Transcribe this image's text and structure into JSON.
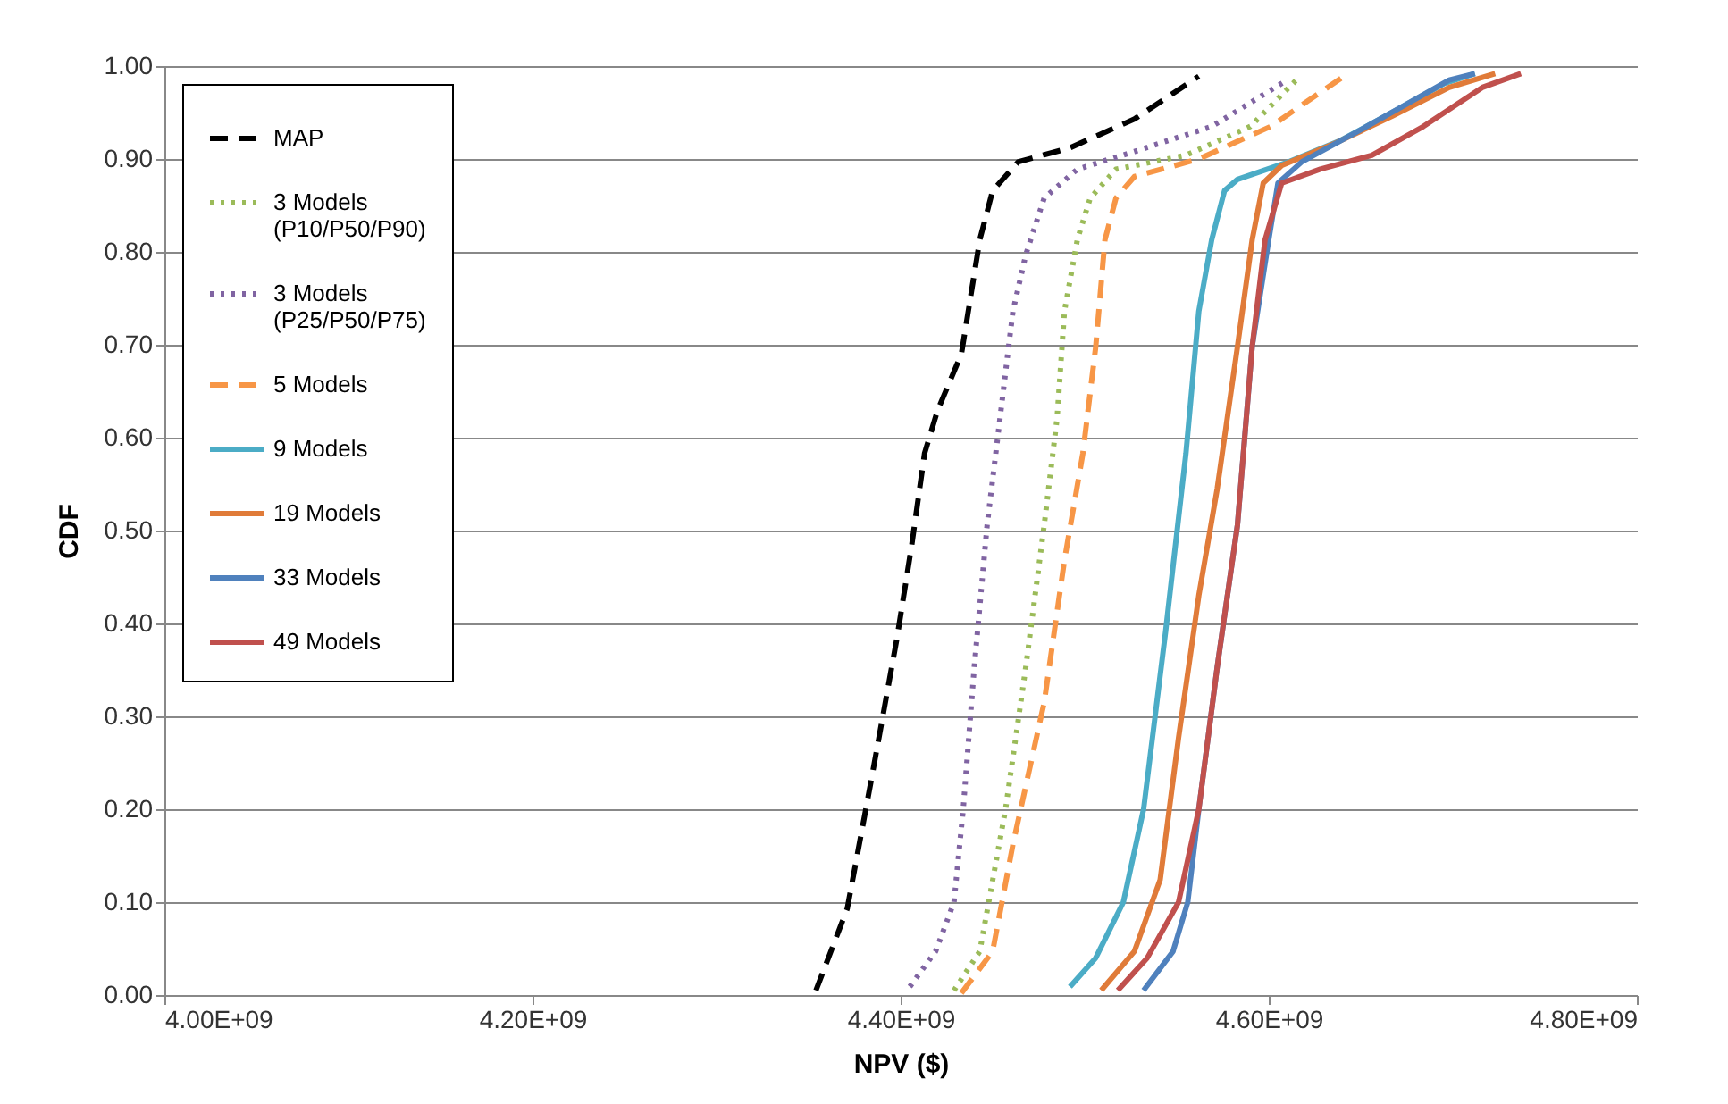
{
  "chart_data": {
    "type": "line",
    "xlabel": "NPV ($)",
    "ylabel": "CDF",
    "xlim": [
      4000000000.0,
      4800000000.0
    ],
    "ylim": [
      0,
      1
    ],
    "xticks": [
      {
        "value": 4000000000.0,
        "label": "4.00E+09"
      },
      {
        "value": 4200000000.0,
        "label": "4.20E+09"
      },
      {
        "value": 4400000000.0,
        "label": "4.40E+09"
      },
      {
        "value": 4600000000.0,
        "label": "4.60E+09"
      },
      {
        "value": 4800000000.0,
        "label": "4.80E+09"
      }
    ],
    "yticks": [
      {
        "value": 0,
        "label": "0.00"
      },
      {
        "value": 0.1,
        "label": "0.10"
      },
      {
        "value": 0.2,
        "label": "0.20"
      },
      {
        "value": 0.3,
        "label": "0.30"
      },
      {
        "value": 0.4,
        "label": "0.40"
      },
      {
        "value": 0.5,
        "label": "0.50"
      },
      {
        "value": 0.6,
        "label": "0.60"
      },
      {
        "value": 0.7,
        "label": "0.70"
      },
      {
        "value": 0.8,
        "label": "0.80"
      },
      {
        "value": 0.9,
        "label": "0.90"
      },
      {
        "value": 1.0,
        "label": "1.00"
      }
    ],
    "grid": "y",
    "legend": "top left",
    "series": [
      {
        "name": "MAP",
        "color": "#000000",
        "line_style": "dashed",
        "x": [
          4354000000.0,
          4371000000.0,
          4384000000.0,
          4398000000.0,
          4406000000.0,
          4413000000.0,
          4420000000.0,
          4433000000.0,
          4443000000.0,
          4450000000.0,
          4464000000.0,
          4492000000.0,
          4527000000.0,
          4562000000.0
        ],
        "values": [
          0.005,
          0.093,
          0.231,
          0.384,
          0.484,
          0.583,
          0.629,
          0.69,
          0.813,
          0.866,
          0.897,
          0.912,
          0.943,
          0.989
        ]
      },
      {
        "name": "3 Models (P10/P50/P90)",
        "color": "#9bbb59",
        "line_style": "dotted",
        "x": [
          4429000000.0,
          4443000000.0,
          4457000000.0,
          4468000000.0,
          4478000000.0,
          4485000000.0,
          4489000000.0,
          4496000000.0,
          4503000000.0,
          4517000000.0,
          4555000000.0,
          4590000000.0,
          4616000000.0
        ],
        "values": [
          0.005,
          0.047,
          0.2,
          0.353,
          0.506,
          0.621,
          0.736,
          0.813,
          0.858,
          0.889,
          0.904,
          0.935,
          0.987
        ]
      },
      {
        "name": "3 Models (P25/P50/P75)",
        "color": "#8064a2",
        "line_style": "dotted",
        "x": [
          4405000000.0,
          4419000000.0,
          4429000000.0,
          4434000000.0,
          4440000000.0,
          4447000000.0,
          4454000000.0,
          4461000000.0,
          4468000000.0,
          4478000000.0,
          4496000000.0,
          4527000000.0,
          4569000000.0,
          4610000000.0
        ],
        "values": [
          0.009,
          0.047,
          0.1,
          0.2,
          0.353,
          0.506,
          0.621,
          0.736,
          0.797,
          0.858,
          0.889,
          0.908,
          0.935,
          0.985
        ]
      },
      {
        "name": "5 Models",
        "color": "#f79646",
        "line_style": "dashed",
        "x": [
          4433000000.0,
          4450000000.0,
          4461000000.0,
          4478000000.0,
          4489000000.0,
          4499000000.0,
          4506000000.0,
          4511000000.0,
          4517000000.0,
          4527000000.0,
          4562000000.0,
          4601000000.0,
          4643000000.0
        ],
        "values": [
          0.002,
          0.047,
          0.162,
          0.315,
          0.468,
          0.583,
          0.698,
          0.813,
          0.858,
          0.881,
          0.9,
          0.935,
          0.992
        ]
      },
      {
        "name": "9 Models",
        "color": "#4bacc6",
        "line_style": "solid",
        "x": [
          4492000000.0,
          4506000000.0,
          4521000000.0,
          4532000000.0,
          4544000000.0,
          4555000000.0,
          4562000000.0,
          4569000000.0,
          4576000000.0,
          4583000000.0,
          4611000000.0,
          4639000000.0,
          4667000000.0,
          4695000000.0,
          4712000000.0
        ],
        "values": [
          0.009,
          0.04,
          0.1,
          0.2,
          0.392,
          0.583,
          0.736,
          0.813,
          0.866,
          0.878,
          0.897,
          0.92,
          0.95,
          0.981,
          0.992
        ]
      },
      {
        "name": "19 Models",
        "color": "#e07b39",
        "line_style": "solid",
        "x": [
          4509000000.0,
          4527000000.0,
          4541000000.0,
          4551000000.0,
          4562000000.0,
          4572000000.0,
          4583000000.0,
          4591000000.0,
          4597000000.0,
          4607000000.0,
          4635000000.0,
          4667000000.0,
          4698000000.0,
          4723000000.0
        ],
        "values": [
          0.005,
          0.047,
          0.124,
          0.277,
          0.43,
          0.545,
          0.698,
          0.813,
          0.874,
          0.893,
          0.916,
          0.946,
          0.977,
          0.992
        ]
      },
      {
        "name": "33 Models",
        "color": "#4f81bd",
        "line_style": "solid",
        "x": [
          4532000000.0,
          4548000000.0,
          4556000000.0,
          4562000000.0,
          4572000000.0,
          4583000000.0,
          4591000000.0,
          4600000000.0,
          4605000000.0,
          4618000000.0,
          4646000000.0,
          4674000000.0,
          4698000000.0,
          4712000000.0
        ],
        "values": [
          0.005,
          0.047,
          0.1,
          0.2,
          0.353,
          0.506,
          0.698,
          0.813,
          0.874,
          0.897,
          0.927,
          0.958,
          0.985,
          0.992
        ]
      },
      {
        "name": "49 Models",
        "color": "#c0504d",
        "line_style": "solid",
        "x": [
          4518000000.0,
          4534000000.0,
          4551000000.0,
          4562000000.0,
          4572000000.0,
          4583000000.0,
          4591000000.0,
          4598000000.0,
          4607000000.0,
          4628000000.0,
          4656000000.0,
          4684000000.0,
          4716000000.0,
          4737000000.0
        ],
        "values": [
          0.005,
          0.04,
          0.1,
          0.2,
          0.353,
          0.506,
          0.698,
          0.813,
          0.874,
          0.889,
          0.904,
          0.935,
          0.977,
          0.992
        ]
      }
    ]
  }
}
